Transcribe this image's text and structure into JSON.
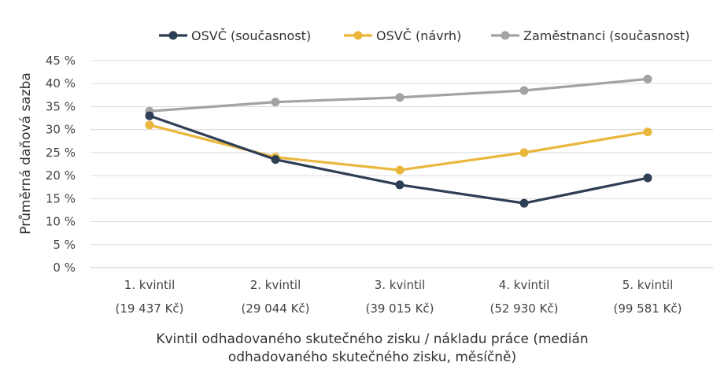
{
  "chart_data": {
    "type": "line",
    "title": "",
    "ylabel": "Průměrná daňová sazba",
    "xlabel_lines": [
      "Kvintil odhadovaného skutečného zisku / nákladu práce (medián",
      "odhadovaného skutečného zisku, měsíčně)"
    ],
    "categories": [
      "1. kvintil",
      "2. kvintil",
      "3. kvintil",
      "4. kvintil",
      "5. kvintil"
    ],
    "category_sublabels": [
      "(19 437 Kč)",
      "(29 044 Kč)",
      "(39 015 Kč)",
      "(52 930 Kč)",
      "(99 581 Kč)"
    ],
    "y_ticks": [
      "0 %",
      "5 %",
      "10 %",
      "15 %",
      "20 %",
      "25 %",
      "30 %",
      "35 %",
      "40 %",
      "45 %"
    ],
    "ylim": [
      0,
      45
    ],
    "grid": true,
    "legend_position": "top",
    "series": [
      {
        "name": "OSVČ (současnost)",
        "color": "#2d3e55",
        "values": [
          33,
          23.5,
          18,
          14,
          19.5
        ]
      },
      {
        "name": "OSVČ (návrh)",
        "color": "#eab73c",
        "values": [
          31,
          24,
          21.2,
          25,
          29.5
        ]
      },
      {
        "name": "Zaměstnanci (současnost)",
        "color": "#a3a3a3",
        "values": [
          34,
          36,
          37,
          38.5,
          41
        ]
      }
    ]
  }
}
